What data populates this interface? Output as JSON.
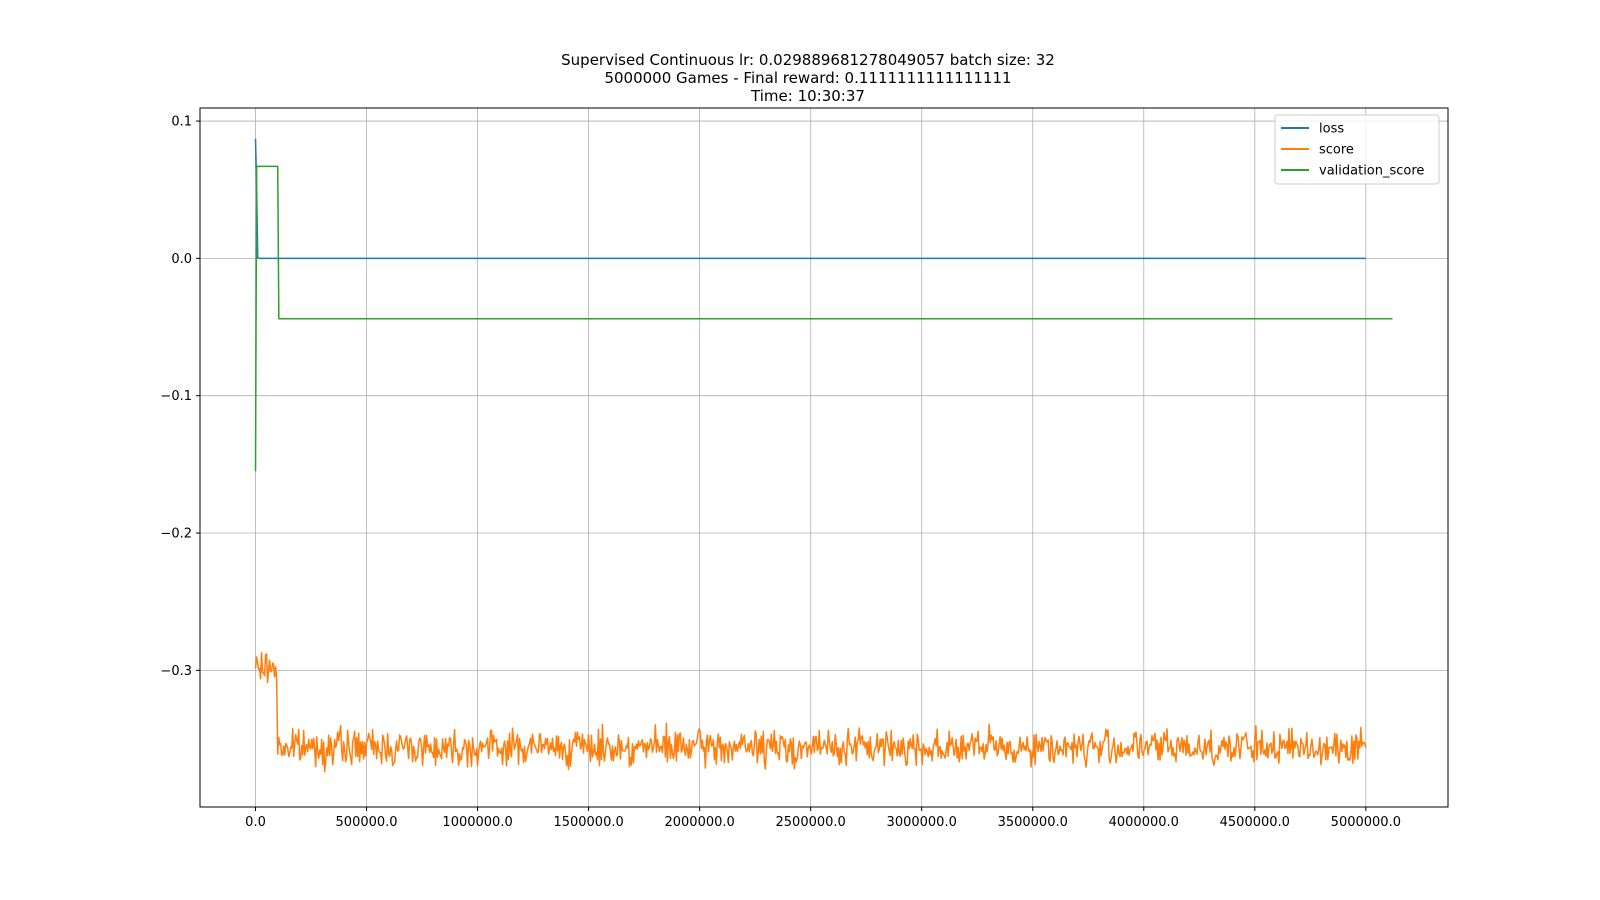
{
  "chart_data": {
    "type": "line",
    "title_lines": [
      "Supervised Continuous lr: 0.029889681278049057 batch size: 32",
      "5000000 Games - Final reward: 0.1111111111111111",
      "Time: 10:30:37"
    ],
    "xlabel": "",
    "ylabel": "",
    "xlim": [
      -250000,
      5370000
    ],
    "ylim": [
      -0.3995,
      0.1095
    ],
    "x_ticks": [
      0,
      500000,
      1000000,
      1500000,
      2000000,
      2500000,
      3000000,
      3500000,
      4000000,
      4500000,
      5000000
    ],
    "x_tick_labels": [
      "0.0",
      "500000.0",
      "1000000.0",
      "1500000.0",
      "2000000.0",
      "2500000.0",
      "3000000.0",
      "3500000.0",
      "4000000.0",
      "4500000.0",
      "5000000.0"
    ],
    "y_ticks": [
      0.1,
      0.0,
      -0.1,
      -0.2,
      -0.3
    ],
    "y_tick_labels": [
      "0.1",
      "0.0",
      "−0.1",
      "−0.2",
      "−0.3"
    ],
    "grid": true,
    "legend_position": "top-right",
    "series": [
      {
        "name": "loss",
        "color": "#1f77b4",
        "x": [
          0,
          5000,
          10000,
          20000,
          5000000
        ],
        "y": [
          0.087,
          0.05,
          0.0002,
          0.0,
          0.0
        ]
      },
      {
        "name": "score",
        "color": "#ff7f0e",
        "noisy": true,
        "segments": [
          {
            "x_start": 0,
            "x_end": 95000,
            "mean": -0.298,
            "amplitude": 0.008
          },
          {
            "x_start": 100000,
            "x_end": 5000000,
            "mean": -0.356,
            "amplitude": 0.009
          }
        ],
        "x": [
          0,
          20000,
          50000,
          90000,
          100000,
          110000,
          150000,
          1000000,
          2000000,
          3000000,
          4000000,
          5000000
        ],
        "y": [
          -0.307,
          -0.292,
          -0.296,
          -0.29,
          -0.3,
          -0.36,
          -0.357,
          -0.356,
          -0.356,
          -0.356,
          -0.356,
          -0.355
        ]
      },
      {
        "name": "validation_score",
        "color": "#2ca02c",
        "x": [
          0,
          5000,
          10000,
          100000,
          105000,
          5120000
        ],
        "y": [
          -0.155,
          0.067,
          0.067,
          0.067,
          -0.044,
          -0.044
        ]
      }
    ]
  }
}
